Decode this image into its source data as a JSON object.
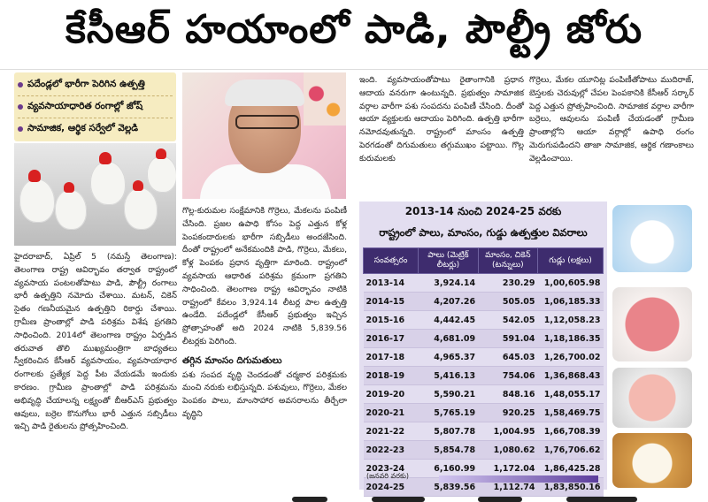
{
  "headline": "కేసీఆర్ హయాంలో పాడి, పౌల్ట్రీ జోరు",
  "highlights": [
    "పదేండ్లలో భారీగా పెరిగిన ఉత్పత్తి",
    "వ్యవసాయాధారిత రంగాల్లో జోష్",
    "సామాజిక, ఆర్థిక సర్వేలో వెల్లడి"
  ],
  "column1": {
    "text": "హైదరాబాద్, ఏప్రిల్ 5 (నమస్తే తెలంగాణ): తెలంగాణ రాష్ట్ర ఆవిర్భావం తర్వాత రాష్ట్రంలో వ్యవసాయ పంటలతోపాటు పాడి, పౌల్ట్రీ రంగాలు భారీ ఉత్పత్తిని నమోదు చేశాయి. మటన్, చికెన్ సైతం గణనీయమైన ఉత్పత్తిని రికార్డు చేశాయి. గ్రామీణ ప్రాంతాల్లో పాడి పరిశ్రమ విశేష ప్రగతిని సాధించింది. 2014లో తెలంగాణ రాష్ట్రం ఏర్పడిన తరువాత తొలి ముఖ్యమంత్రిగా బాధ్యతలు స్వీకరించిన కేసీఆర్ వ్యవసాయం, వ్యవసాయాధార రంగాలకు ప్రత్యేక పెద్ద పీట వేయడమే ఇందుకు కారణం. గ్రామీణ ప్రాంతాల్లో పాడి పరిశ్రమను అభివృద్ధి చేయాలన్న లక్ష్యంతో బీఆర్ఎస్ ప్రభుత్వం ఆవులు, బర్రెల కొనుగోలు భారీ ఎత్తున సబ్సిడీలు ఇచ్చి పాడి రైతులను ప్రోత్సహించింది."
  },
  "column2": {
    "text": "గొల్ల-కురుమల సంక్షేమానికి గొర్రెలు, మేకలను పంపిణీ చేసింది. ప్రజల ఉపాధి కోసం పెద్ద ఎత్తున కోళ్ల పెంపకందారులకు భారీగా సబ్సిడీలు అందజేసింది. దీంతో రాష్ట్రంలో అనేకమందికి పాడి, గొర్రెలు, మేకలు, కోళ్ల పెంపకం ప్రధాన వృత్తిగా మారింది. రాష్ట్రంలో వ్యవసాయ ఆధారిత పరిశ్రమ క్రమంగా ప్రగతిని సాధించింది. తెలంగాణ రాష్ట్ర ఆవిర్భావం నాటికి రాష్ట్రంలో కేవలం 3,924.14 లీటర్ల పాల ఉత్పత్తి ఉండేది. పదేండ్లలో కేసీఆర్ ప్రభుత్వం ఇచ్చిన ప్రోత్సాహంతో అది 2024 నాటికి 5,839.56 లీటర్లకు పెరిగింది.",
    "subheading": "తగ్గిన మాంసం దిగుమతులు",
    "text2": "పశు సంపద వృద్ధి చెందడంతో చర్మకార పరిశ్రమకు మంచి నరుకు లభిస్తున్నది. పశువులు, గొర్రెలు, మేకల పెంపకం పాలు, మాంసాహార అవసరాలను తీర్చేలా వృద్ధిని"
  },
  "column3": {
    "text": "ఇంది. వ్యవసాయంతోపాటు రైతాంగానికి ప్రధాన ఆదాయ వనరుగా ఉంటున్నది. ప్రభుత్వం సామాజిక వర్గాల వారీగా పశు సంపదను పంపిణీ చేసింది. దీంతో ఆయా వ్యక్తులకు ఆదాయం పెరిగింది. ఉత్పత్తి భారీగా నమోదవుతున్నది. రాష్ట్రంలో మాంసం ఉత్పత్తి పెరగడంతో దిగుమతులు తగ్గుముఖం పట్టాయి. గొల్ల కురుమలకు"
  },
  "column4": {
    "text": "గొర్రెలు, మేకల యూనిట్ల పంపిణీతోపాటు ముదిరాజ్, బెస్తలకు చెరువుల్లో చేపల పెంపకానికి కేసీఆర్ సర్కార్ పెద్ద ఎత్తున ప్రోత్సహించింది. సామాజిక వర్గాల వారీగా బర్రెలు, ఆవులను పంపిణీ చేయడంతో గ్రామీణ ప్రాంతాల్లోని ఆయా వర్గాల్లో ఉపాధి రంగం మెరుగుపడిందని తాజా సామాజిక, ఆర్థిక గణాంకాలు వెల్లడించాయి."
  },
  "table": {
    "title": "2013-14 నుంచి 2024-25 వరకు",
    "subtitle": "రాష్ట్రంలో పాలు, మాంసం, గుడ్డు ఉత్పత్తుల వివరాలు",
    "headers": [
      "సంవత్సరం",
      "పాలు (మెట్రిక్ లీటర్లు)",
      "మాంసం, చికెన్ (టన్నులు)",
      "గుడ్లు (లక్షలు)"
    ],
    "rows": [
      [
        "2013-14",
        "3,924.14",
        "230.29",
        "1,00,605.98"
      ],
      [
        "2014-15",
        "4,207.26",
        "505.05",
        "1,06,185.33"
      ],
      [
        "2015-16",
        "4,442.45",
        "542.05",
        "1,12,058.23"
      ],
      [
        "2016-17",
        "4,681.09",
        "591.04",
        "1,18,186.35"
      ],
      [
        "2017-18",
        "4,965.37",
        "645.03",
        "1,26,700.02"
      ],
      [
        "2018-19",
        "5,416.13",
        "754.06",
        "1,36,868.43"
      ],
      [
        "2019-20",
        "5,590.21",
        "848.16",
        "1,48,055.17"
      ],
      [
        "2020-21",
        "5,765.19",
        "920.25",
        "1,58,469.75"
      ],
      [
        "2021-22",
        "5,807.78",
        "1,004.95",
        "1,66,708.39"
      ],
      [
        "2022-23",
        "5,854.78",
        "1,080.62",
        "1,76,706.62"
      ],
      [
        "2023-24",
        "6,160.99",
        "1,172.04",
        "1,86,425.28"
      ],
      [
        "2024-25",
        "5,839.56",
        "1,112.74",
        "1,83,850.16"
      ]
    ],
    "note": "(జనవరి వరకు)"
  }
}
